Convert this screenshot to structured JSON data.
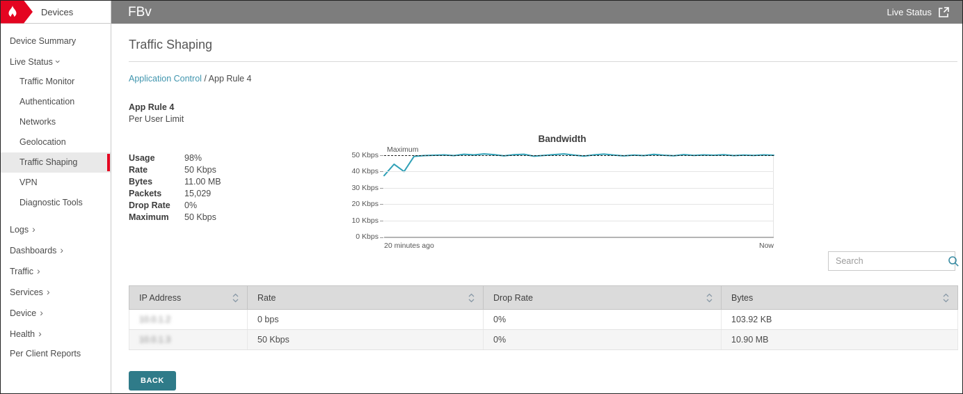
{
  "colors": {
    "brand_red": "#e40521",
    "topbar_gray": "#7d7d7d",
    "accent_teal": "#4095ae",
    "button_teal": "#2f7b89",
    "chart_line_teal": "#2fa0b6"
  },
  "sidebar": {
    "header_label": "Devices",
    "items": [
      {
        "label": "Device Summary",
        "level": 0,
        "suffix": "none",
        "selected": false,
        "group_gap": false
      },
      {
        "label": "Live Status",
        "level": 0,
        "suffix": "expand-down",
        "selected": false,
        "group_gap": false
      },
      {
        "label": "Traffic Monitor",
        "level": 1,
        "suffix": "none",
        "selected": false,
        "group_gap": false
      },
      {
        "label": "Authentication",
        "level": 1,
        "suffix": "none",
        "selected": false,
        "group_gap": false
      },
      {
        "label": "Networks",
        "level": 1,
        "suffix": "none",
        "selected": false,
        "group_gap": false
      },
      {
        "label": "Geolocation",
        "level": 1,
        "suffix": "none",
        "selected": false,
        "group_gap": false
      },
      {
        "label": "Traffic Shaping",
        "level": 1,
        "suffix": "none",
        "selected": true,
        "group_gap": false
      },
      {
        "label": "VPN",
        "level": 1,
        "suffix": "none",
        "selected": false,
        "group_gap": false
      },
      {
        "label": "Diagnostic Tools",
        "level": 1,
        "suffix": "none",
        "selected": false,
        "group_gap": false
      },
      {
        "label": "Logs",
        "level": 0,
        "suffix": "expand-right",
        "selected": false,
        "group_gap": true
      },
      {
        "label": "Dashboards",
        "level": 0,
        "suffix": "expand-right",
        "selected": false,
        "group_gap": false
      },
      {
        "label": "Traffic",
        "level": 0,
        "suffix": "expand-right",
        "selected": false,
        "group_gap": false
      },
      {
        "label": "Services",
        "level": 0,
        "suffix": "expand-right",
        "selected": false,
        "group_gap": false
      },
      {
        "label": "Device",
        "level": 0,
        "suffix": "expand-right",
        "selected": false,
        "group_gap": false
      },
      {
        "label": "Health",
        "level": 0,
        "suffix": "expand-right",
        "selected": false,
        "group_gap": false
      },
      {
        "label": "Per Client Reports",
        "level": 0,
        "suffix": "none",
        "selected": false,
        "group_gap": false
      }
    ]
  },
  "topbar": {
    "title": "FBv",
    "live_status_label": "Live Status"
  },
  "page": {
    "title": "Traffic Shaping"
  },
  "breadcrumb": {
    "link": "Application Control",
    "rest": " / App Rule 4"
  },
  "rule": {
    "name": "App Rule 4",
    "subtitle": "Per User Limit"
  },
  "stats": [
    {
      "label": "Usage",
      "value": "98%"
    },
    {
      "label": "Rate",
      "value": "50 Kbps"
    },
    {
      "label": "Bytes",
      "value": "11.00 MB"
    },
    {
      "label": "Packets",
      "value": "15,029"
    },
    {
      "label": "Drop Rate",
      "value": "0%"
    },
    {
      "label": "Maximum",
      "value": "50 Kbps"
    }
  ],
  "chart_data": {
    "type": "line",
    "title": "Bandwidth",
    "ylabel": "Kbps",
    "ylim": [
      0,
      50
    ],
    "yticks": [
      "50 Kbps",
      "40 Kbps",
      "30 Kbps",
      "20 Kbps",
      "10 Kbps",
      "0 Kbps"
    ],
    "x_start_label": "20 minutes ago",
    "x_end_label": "Now",
    "maximum_line": {
      "label": "Maximum",
      "value_kbps": 50,
      "style": "dashed"
    },
    "grid": true,
    "legend_position": "none",
    "series": [
      {
        "name": "Bandwidth",
        "color": "#2fa0b6",
        "values": [
          37.5,
          44.5,
          40,
          49.3,
          49.8,
          50,
          50.2,
          49.8,
          50.6,
          50.2,
          50.8,
          50.4,
          49.6,
          50.3,
          50.6,
          49.4,
          49.9,
          50.4,
          50.8,
          50.1,
          49.5,
          50.2,
          50.7,
          50.1,
          49.6,
          50.1,
          49.8,
          50.5,
          50.0,
          49.7,
          50.4,
          49.9,
          50.2,
          50.0,
          50.3,
          49.8,
          50.1,
          49.9,
          50.2,
          50.0
        ]
      }
    ]
  },
  "search": {
    "placeholder": "Search"
  },
  "table": {
    "columns": [
      {
        "label": "IP Address",
        "sortable": true
      },
      {
        "label": "Rate",
        "sortable": true
      },
      {
        "label": "Drop Rate",
        "sortable": true
      },
      {
        "label": "Bytes",
        "sortable": true
      }
    ],
    "rows": [
      {
        "ip": "10.0.1.2",
        "ip_redacted": true,
        "rate": "0 bps",
        "drop_rate": "0%",
        "bytes": "103.92 KB"
      },
      {
        "ip": "10.0.1.3",
        "ip_redacted": true,
        "rate": "50 Kbps",
        "drop_rate": "0%",
        "bytes": "10.90 MB"
      }
    ]
  },
  "actions": {
    "back_label": "BACK"
  }
}
